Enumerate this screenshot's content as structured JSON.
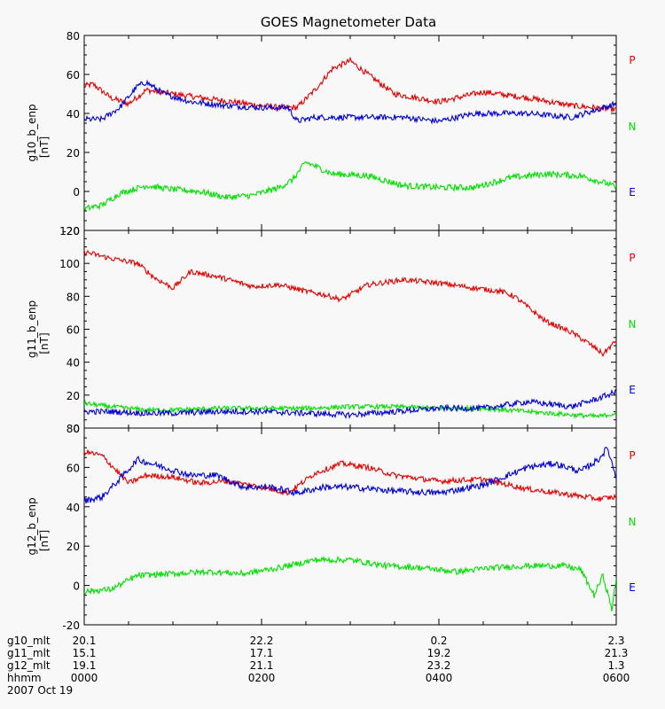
{
  "chart_data": {
    "type": "line",
    "title": "GOES Magnetometer Data",
    "x_range_hours": [
      0,
      6
    ],
    "x_ticks_hours": [
      0,
      2,
      4,
      6
    ],
    "colors": {
      "P": "#e00000",
      "N": "#00e000",
      "E": "#0000d0"
    },
    "legend_labels": [
      "P",
      "N",
      "E"
    ],
    "panels": [
      {
        "ylabel": "g10_b_enp",
        "yunits": "[nT]",
        "ylim": [
          -20,
          80
        ],
        "yticks": [
          "-20",
          "0",
          "20",
          "40",
          "60",
          "80"
        ],
        "series": [
          {
            "name": "P",
            "x": [
              0,
              0.1,
              0.3,
              0.5,
              0.7,
              1.0,
              1.5,
              2.0,
              2.2,
              2.4,
              2.6,
              2.8,
              3.0,
              3.2,
              3.5,
              4.0,
              4.5,
              5.0,
              5.5,
              6.0
            ],
            "y": [
              54,
              55,
              48,
              45,
              52,
              50,
              47,
              44,
              43,
              43,
              52,
              63,
              67,
              60,
              50,
              46,
              51,
              48,
              44,
              42
            ],
            "noise": 1.5
          },
          {
            "name": "E",
            "x": [
              0,
              0.2,
              0.4,
              0.6,
              0.7,
              0.9,
              1.2,
              1.6,
              2.0,
              2.3,
              2.4,
              2.6,
              2.8,
              3.2,
              3.6,
              4.0,
              4.4,
              5.0,
              5.5,
              6.0
            ],
            "y": [
              37,
              37,
              43,
              54,
              56,
              50,
              46,
              44,
              43,
              43,
              36,
              38,
              38,
              38,
              38,
              36,
              40,
              40,
              38,
              45
            ],
            "noise": 1.5
          },
          {
            "name": "N",
            "x": [
              0,
              0.2,
              0.4,
              0.7,
              1.0,
              1.3,
              1.6,
              1.9,
              2.2,
              2.35,
              2.5,
              2.8,
              3.2,
              3.6,
              4.0,
              4.4,
              4.8,
              5.2,
              5.6,
              5.9,
              6.0
            ],
            "y": [
              -9,
              -7,
              -1,
              3,
              1,
              0,
              -3,
              -2,
              2,
              6,
              15,
              9,
              8,
              3,
              2,
              2,
              7,
              9,
              8,
              4,
              2
            ],
            "noise": 1.6
          }
        ]
      },
      {
        "ylabel": "g11_b_enp",
        "yunits": "[nT]",
        "ylim": [
          0,
          120
        ],
        "yticks": [
          "0",
          "20",
          "40",
          "60",
          "80",
          "100",
          "120"
        ],
        "series": [
          {
            "name": "P",
            "x": [
              0,
              0.3,
              0.6,
              0.8,
              1.0,
              1.2,
              1.5,
              1.9,
              2.2,
              2.5,
              2.7,
              2.9,
              3.2,
              3.6,
              4.0,
              4.4,
              4.7,
              4.85,
              5.2,
              5.5,
              5.7,
              5.85,
              6.0
            ],
            "y": [
              107,
              103,
              100,
              91,
              85,
              95,
              92,
              86,
              87,
              83,
              81,
              78,
              87,
              90,
              88,
              85,
              83,
              80,
              65,
              58,
              51,
              45,
              53
            ],
            "noise": 1.6
          },
          {
            "name": "N",
            "x": [
              0,
              0.3,
              0.7,
              1.0,
              1.5,
              2.0,
              2.5,
              3.0,
              3.5,
              4.0,
              4.5,
              5.0,
              5.5,
              5.8,
              6.0
            ],
            "y": [
              15,
              13,
              11,
              11,
              12,
              12,
              12,
              13,
              13,
              12,
              12,
              10,
              8,
              7,
              9
            ],
            "noise": 1.4
          },
          {
            "name": "E",
            "x": [
              0,
              0.3,
              0.7,
              1.0,
              1.5,
              2.0,
              2.5,
              3.0,
              3.5,
              4.0,
              4.5,
              5.0,
              5.5,
              5.8,
              6.0
            ],
            "y": [
              10,
              10,
              9,
              9,
              10,
              10,
              9,
              8,
              10,
              12,
              12,
              16,
              13,
              18,
              22
            ],
            "noise": 1.8
          }
        ]
      },
      {
        "ylabel": "g12_b_enp",
        "yunits": "[nT]",
        "ylim": [
          -20,
          80
        ],
        "yticks": [
          "-20",
          "0",
          "20",
          "40",
          "60",
          "80"
        ],
        "series": [
          {
            "name": "P",
            "x": [
              0,
              0.2,
              0.5,
              0.7,
              1.0,
              1.3,
              1.6,
              2.0,
              2.3,
              2.6,
              2.9,
              3.2,
              3.5,
              4.0,
              4.5,
              5.0,
              5.5,
              5.8,
              6.0
            ],
            "y": [
              68,
              66,
              52,
              56,
              55,
              52,
              53,
              50,
              47,
              57,
              62,
              60,
              56,
              53,
              54,
              49,
              46,
              44,
              45
            ],
            "noise": 1.4
          },
          {
            "name": "E",
            "x": [
              0,
              0.2,
              0.4,
              0.6,
              0.9,
              1.2,
              1.5,
              1.8,
              2.1,
              2.4,
              2.7,
              3.0,
              3.5,
              4.0,
              4.5,
              5.0,
              5.3,
              5.6,
              5.8,
              5.9,
              6.0
            ],
            "y": [
              43,
              45,
              54,
              64,
              60,
              56,
              56,
              50,
              50,
              47,
              50,
              50,
              48,
              47,
              51,
              60,
              62,
              58,
              64,
              70,
              55
            ],
            "noise": 1.6
          },
          {
            "name": "N",
            "x": [
              0,
              0.3,
              0.6,
              1.0,
              1.4,
              1.8,
              2.2,
              2.6,
              3.0,
              3.4,
              3.8,
              4.2,
              4.6,
              5.0,
              5.4,
              5.6,
              5.75,
              5.85,
              5.95,
              6.0
            ],
            "y": [
              -3,
              -2,
              5,
              6,
              7,
              6,
              9,
              13,
              13,
              10,
              9,
              7,
              9,
              10,
              10,
              8,
              -5,
              5,
              -12,
              3
            ],
            "noise": 1.5
          }
        ]
      }
    ],
    "x_footer": {
      "rows": [
        {
          "label": "g10_mlt",
          "values": [
            "20.1",
            "22.2",
            "0.2",
            "2.3"
          ]
        },
        {
          "label": "g11_mlt",
          "values": [
            "15.1",
            "17.1",
            "19.2",
            "21.3"
          ]
        },
        {
          "label": "g12_mlt",
          "values": [
            "19.1",
            "21.1",
            "23.2",
            "1.3"
          ]
        },
        {
          "label": "hhmm",
          "values": [
            "0000",
            "0200",
            "0400",
            "0600"
          ]
        }
      ],
      "date": "2007 Oct 19"
    }
  }
}
